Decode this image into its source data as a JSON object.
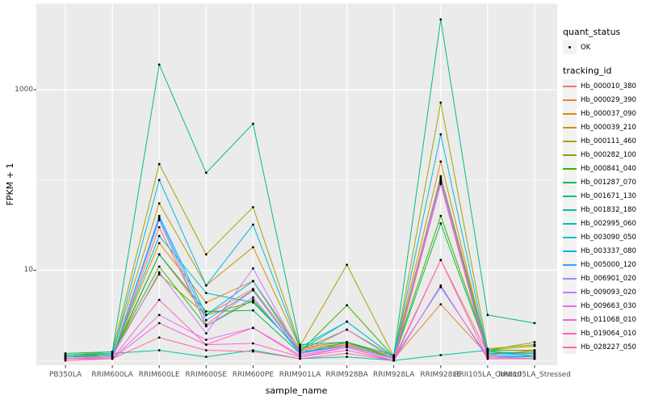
{
  "figure": {
    "background": "#FFFFFF",
    "panel_background": "#EBEBEB",
    "gridline_color": "#FFFFFF",
    "tick_color": "#333333",
    "point_color": "#000000"
  },
  "chart_data": {
    "type": "line",
    "title": "",
    "xlabel": "sample_name",
    "ylabel": "FPKM + 1",
    "y_scale": "log10",
    "grid": true,
    "legend_position": "right",
    "y_ticks": [
      {
        "label": "10",
        "value": 10
      },
      {
        "label": "1000",
        "value": 1000
      }
    ],
    "y_minor_values": [
      1,
      100
    ],
    "ylim": [
      0.9,
      8000
    ],
    "categories": [
      "PB350LA",
      "RRIM600LA",
      "RRIM600LE",
      "RRIM600SE",
      "RRIM600PE",
      "RRIM901LA",
      "RRIM928BA",
      "RRIM928LA",
      "RRIM928LE",
      "RRII105LA_Control",
      "RRII105LA_Stressed"
    ],
    "legend": {
      "quant_title": "quant_status",
      "quant_entries": [
        {
          "label": "OK",
          "symbol": "point"
        }
      ],
      "tracking_title": "tracking_id"
    },
    "series": [
      {
        "name": "Hb_000010_380",
        "color": "#F8766D",
        "quant_status": "OK",
        "values": [
          1.1,
          1.1,
          30,
          2.5,
          6.0,
          1.2,
          1.5,
          1.05,
          13,
          1.2,
          1.2
        ]
      },
      {
        "name": "Hb_000029_390",
        "color": "#EA8331",
        "quant_status": "OK",
        "values": [
          1.05,
          1.1,
          15,
          3.2,
          6.2,
          1.3,
          1.5,
          1.05,
          4.2,
          1.15,
          1.3
        ]
      },
      {
        "name": "Hb_000037_090",
        "color": "#D89000",
        "quant_status": "OK",
        "values": [
          1.1,
          1.15,
          20,
          4.4,
          7.6,
          1.35,
          1.55,
          1.1,
          160,
          1.2,
          1.25
        ]
      },
      {
        "name": "Hb_000039_210",
        "color": "#C09B00",
        "quant_status": "OK",
        "values": [
          1.1,
          1.2,
          55,
          6.8,
          18,
          1.4,
          1.6,
          1.1,
          110,
          1.3,
          1.45
        ]
      },
      {
        "name": "Hb_000111_460",
        "color": "#A3A500",
        "quant_status": "OK",
        "values": [
          1.15,
          1.25,
          150,
          15,
          50,
          1.45,
          11.5,
          1.1,
          720,
          1.35,
          1.5
        ]
      },
      {
        "name": "Hb_000282_100",
        "color": "#7CAE00",
        "quant_status": "OK",
        "values": [
          1.1,
          1.2,
          9.0,
          3.2,
          4.5,
          1.3,
          2.2,
          1.1,
          100,
          1.3,
          1.6
        ]
      },
      {
        "name": "Hb_000841_040",
        "color": "#39B600",
        "quant_status": "OK",
        "values": [
          1.1,
          1.2,
          11,
          2.4,
          4.7,
          1.25,
          4.1,
          1.1,
          40,
          1.3,
          1.3
        ]
      },
      {
        "name": "Hb_001287_070",
        "color": "#00BB4E",
        "quant_status": "OK",
        "values": [
          1.1,
          1.15,
          15,
          3.5,
          3.6,
          1.2,
          1.6,
          1.05,
          33,
          1.25,
          1.2
        ]
      },
      {
        "name": "Hb_001671_130",
        "color": "#00BF7D",
        "quant_status": "OK",
        "values": [
          1.2,
          1.25,
          1900,
          120,
          420,
          1.5,
          1.6,
          1.15,
          6000,
          3.2,
          2.6
        ]
      },
      {
        "name": "Hb_001832_180",
        "color": "#00C1A3",
        "quant_status": "OK",
        "values": [
          1.15,
          1.2,
          1.3,
          1.1,
          1.3,
          1.05,
          1.1,
          1.0,
          1.15,
          1.3,
          1.1
        ]
      },
      {
        "name": "Hb_002995_060",
        "color": "#00BFC4",
        "quant_status": "OK",
        "values": [
          1.1,
          1.15,
          24,
          5.6,
          4.4,
          1.3,
          2.7,
          1.1,
          95,
          1.2,
          1.15
        ]
      },
      {
        "name": "Hb_003090_050",
        "color": "#00BAE0",
        "quant_status": "OK",
        "values": [
          1.1,
          1.15,
          100,
          6.8,
          32,
          1.4,
          2.7,
          1.1,
          320,
          1.25,
          1.2
        ]
      },
      {
        "name": "Hb_003337_080",
        "color": "#00B0F6",
        "quant_status": "OK",
        "values": [
          1.05,
          1.1,
          40,
          3.2,
          7.6,
          1.25,
          1.45,
          1.05,
          105,
          1.15,
          1.1
        ]
      },
      {
        "name": "Hb_005000_120",
        "color": "#35A2FF",
        "quant_status": "OK",
        "values": [
          1.05,
          1.1,
          38,
          2.8,
          6.0,
          1.2,
          1.45,
          1.05,
          6.5,
          1.1,
          1.1
        ]
      },
      {
        "name": "Hb_006901_020",
        "color": "#9590FF",
        "quant_status": "OK",
        "values": [
          1.05,
          1.1,
          36,
          2.4,
          5.0,
          1.2,
          1.45,
          1.05,
          98,
          1.1,
          1.05
        ]
      },
      {
        "name": "Hb_009093_020",
        "color": "#C77CFF",
        "quant_status": "OK",
        "values": [
          1.05,
          1.1,
          9.5,
          2.0,
          10.5,
          1.2,
          2.2,
          1.05,
          100,
          1.1,
          1.05
        ]
      },
      {
        "name": "Hb_009663_030",
        "color": "#E76BF3",
        "quant_status": "OK",
        "values": [
          1.05,
          1.05,
          3.2,
          1.7,
          2.3,
          1.15,
          1.4,
          1.0,
          92,
          1.1,
          1.05
        ]
      },
      {
        "name": "Hb_011068_010",
        "color": "#FA62DB",
        "quant_status": "OK",
        "values": [
          1.05,
          1.05,
          2.6,
          1.5,
          1.55,
          1.1,
          1.4,
          1.0,
          6.8,
          1.05,
          1.05
        ]
      },
      {
        "name": "Hb_019064_010",
        "color": "#FF62BC",
        "quant_status": "OK",
        "values": [
          1.05,
          1.05,
          4.7,
          1.5,
          2.3,
          1.1,
          1.3,
          1.0,
          13,
          1.05,
          1.05
        ]
      },
      {
        "name": "Hb_028227_050",
        "color": "#FF6A98",
        "quant_status": "OK",
        "values": [
          1.0,
          1.05,
          1.8,
          1.3,
          1.26,
          1.05,
          1.2,
          1.0,
          90,
          1.05,
          1.05
        ]
      }
    ]
  }
}
